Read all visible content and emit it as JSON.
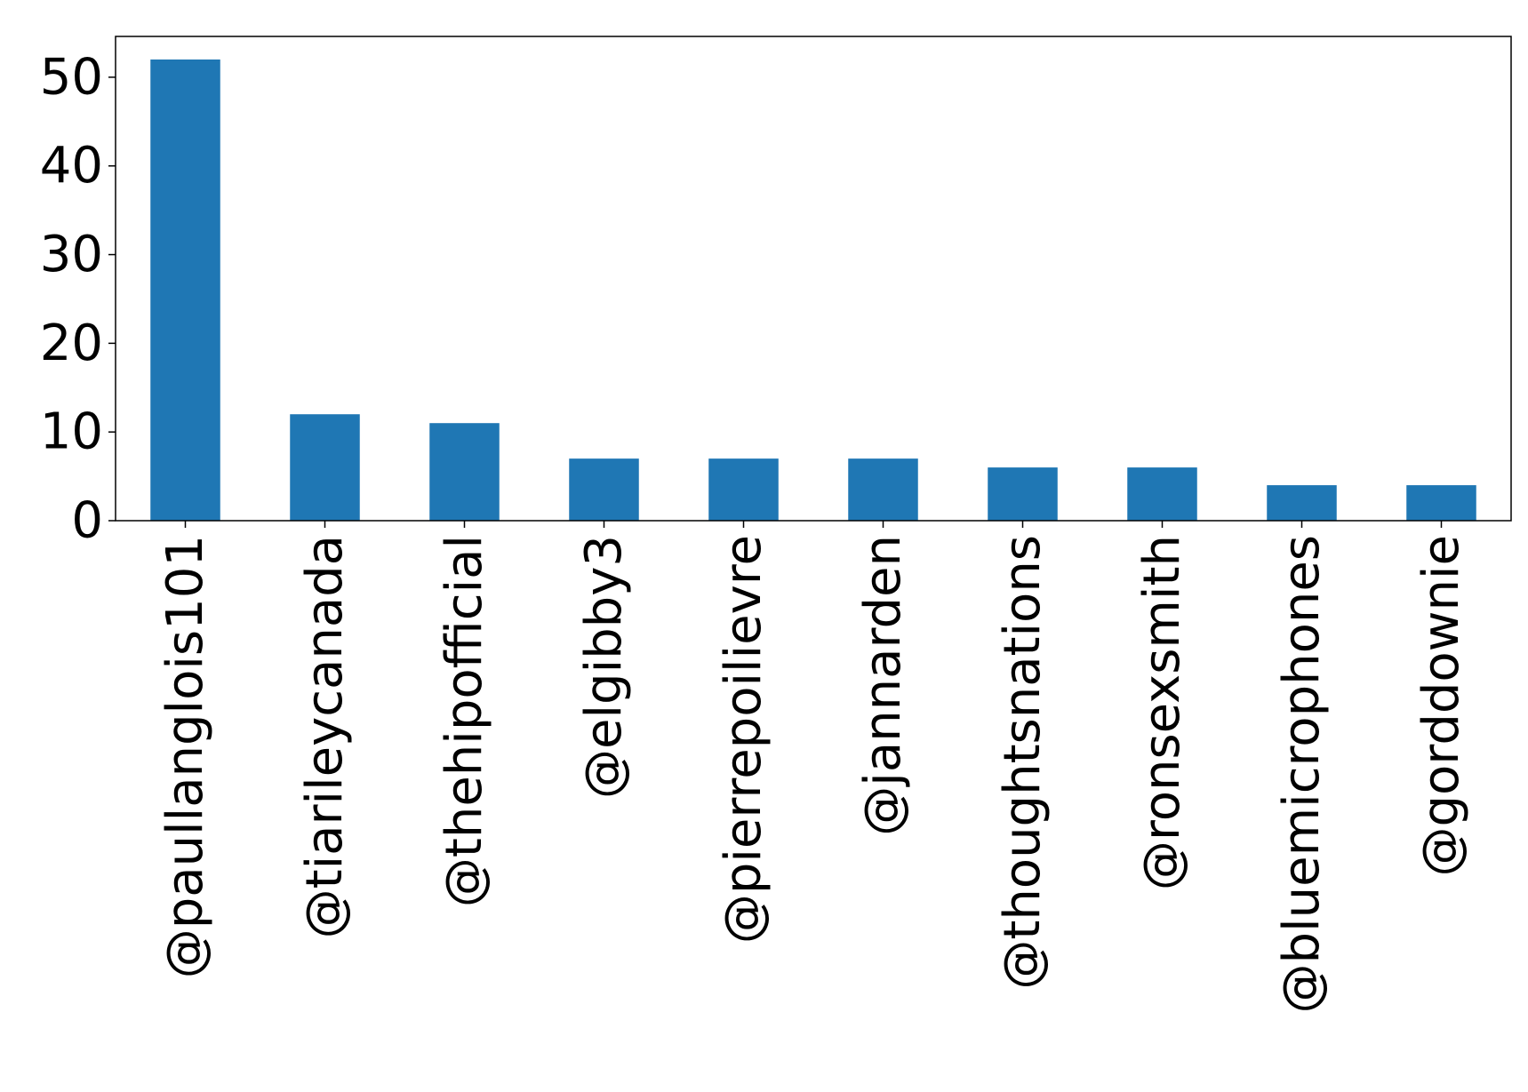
{
  "chart_data": {
    "type": "bar",
    "title": "",
    "xlabel": "",
    "ylabel": "",
    "categories": [
      "@paullanglois101",
      "@tiarileycanada",
      "@thehipofficial",
      "@elgibby3",
      "@pierrepoilievre",
      "@jannarden",
      "@thoughtsnations",
      "@ronsexsmith",
      "@bluemicrophones",
      "@gorddownie"
    ],
    "values": [
      52,
      12,
      11,
      7,
      7,
      7,
      6,
      6,
      4,
      4
    ],
    "ylim": [
      0,
      54.6
    ],
    "yticks": [
      0,
      10,
      20,
      30,
      40,
      50
    ],
    "grid": false,
    "legend": "none",
    "bar_color": "#1f77b4"
  }
}
